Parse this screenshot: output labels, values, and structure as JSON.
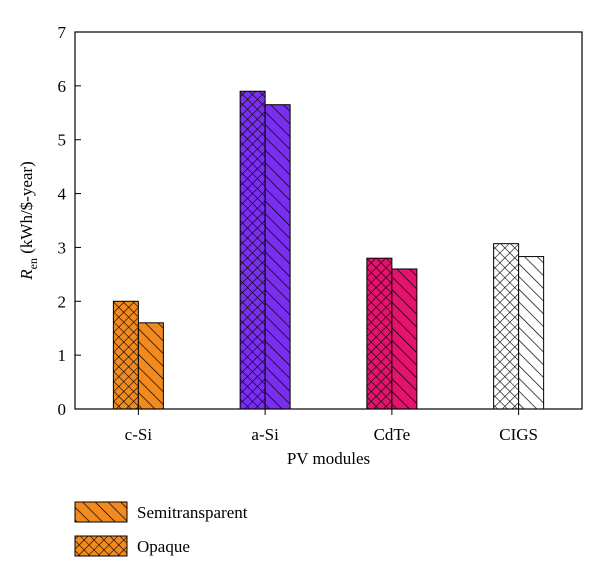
{
  "chart_data": {
    "type": "bar",
    "categories": [
      "c-Si",
      "a-Si",
      "CdTe",
      "CIGS"
    ],
    "series": [
      {
        "name": "Opaque",
        "pattern": "crosshatch",
        "values": [
          2.0,
          5.9,
          2.8,
          3.07
        ]
      },
      {
        "name": "Semitransparent",
        "pattern": "diagonal",
        "values": [
          1.6,
          5.65,
          2.6,
          2.83
        ]
      }
    ],
    "bar_colors": [
      "#f28a1e",
      "#7a2ff0",
      "#e3136e",
      "#ffffff"
    ],
    "xlabel": "PV modules",
    "ylabel": {
      "symbol": "R",
      "subscript": "en",
      "unit": " (kWh/$-year)"
    },
    "ylim": [
      0,
      7
    ],
    "yticks": [
      0,
      1,
      2,
      3,
      4,
      5,
      6,
      7
    ],
    "grid": false,
    "legend": {
      "placement": "bottom-left",
      "entries": [
        {
          "label": "Semitransparent",
          "pattern": "diagonal",
          "color": "#f28a1e"
        },
        {
          "label": "Opaque",
          "pattern": "crosshatch",
          "color": "#f28a1e"
        }
      ]
    }
  }
}
